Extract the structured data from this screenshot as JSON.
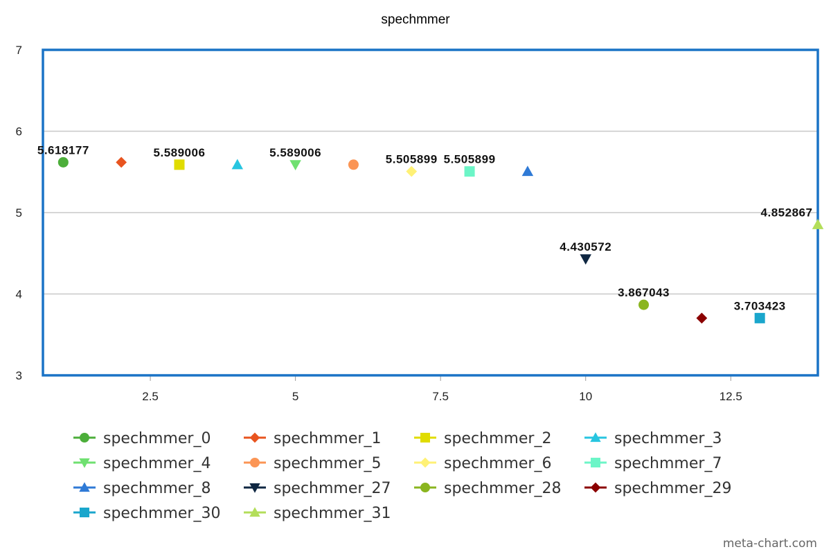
{
  "chart_data": {
    "type": "scatter",
    "title": "spechmmer",
    "xlabel": "",
    "ylabel": "",
    "xlim": [
      0.65,
      14.0
    ],
    "ylim": [
      3,
      7
    ],
    "x_ticks": [
      2.5,
      5,
      7.5,
      10,
      12.5
    ],
    "x_tick_labels": [
      "2.5",
      "5",
      "7.5",
      "10",
      "12.5"
    ],
    "y_ticks": [
      3,
      4,
      5,
      6,
      7
    ],
    "y_tick_labels": [
      "3",
      "4",
      "5",
      "6",
      "7"
    ],
    "grid": "horizontal",
    "legend_position": "bottom",
    "series": [
      {
        "name": "spechmmer_0",
        "x": 1,
        "y": 5.618177,
        "label": "5.618177",
        "color": "#4cae3a",
        "marker": "circle"
      },
      {
        "name": "spechmmer_1",
        "x": 2,
        "y": 5.618177,
        "label": "",
        "color": "#e8541f",
        "marker": "diamond"
      },
      {
        "name": "spechmmer_2",
        "x": 3,
        "y": 5.589006,
        "label": "5.589006",
        "color": "#e0dc00",
        "marker": "square"
      },
      {
        "name": "spechmmer_3",
        "x": 4,
        "y": 5.589006,
        "label": "",
        "color": "#27c5e0",
        "marker": "triangle-up"
      },
      {
        "name": "spechmmer_4",
        "x": 5,
        "y": 5.589006,
        "label": "5.589006",
        "color": "#6fe070",
        "marker": "triangle-down"
      },
      {
        "name": "spechmmer_5",
        "x": 6,
        "y": 5.589006,
        "label": "",
        "color": "#fb9555",
        "marker": "circle"
      },
      {
        "name": "spechmmer_6",
        "x": 7,
        "y": 5.505899,
        "label": "5.505899",
        "color": "#fff176",
        "marker": "diamond"
      },
      {
        "name": "spechmmer_7",
        "x": 8,
        "y": 5.505899,
        "label": "5.505899",
        "color": "#6cf5c7",
        "marker": "square"
      },
      {
        "name": "spechmmer_8",
        "x": 9,
        "y": 5.505899,
        "label": "",
        "color": "#2f7ad6",
        "marker": "triangle-up"
      },
      {
        "name": "spechmmer_27",
        "x": 10,
        "y": 4.430572,
        "label": "4.430572",
        "color": "#0f2742",
        "marker": "triangle-down"
      },
      {
        "name": "spechmmer_28",
        "x": 11,
        "y": 3.867043,
        "label": "3.867043",
        "color": "#8ab51f",
        "marker": "circle"
      },
      {
        "name": "spechmmer_29",
        "x": 12,
        "y": 3.703423,
        "label": "",
        "color": "#8b0000",
        "marker": "diamond"
      },
      {
        "name": "spechmmer_30",
        "x": 13,
        "y": 3.703423,
        "label": "3.703423",
        "color": "#1aa6cc",
        "marker": "square"
      },
      {
        "name": "spechmmer_31",
        "x": 14,
        "y": 4.852867,
        "label": "4.852867",
        "color": "#b3de5a",
        "marker": "triangle-up"
      }
    ],
    "frame_color": "#1a73c6",
    "grid_color": "#c8c8c8"
  },
  "watermark": "meta-chart.com"
}
